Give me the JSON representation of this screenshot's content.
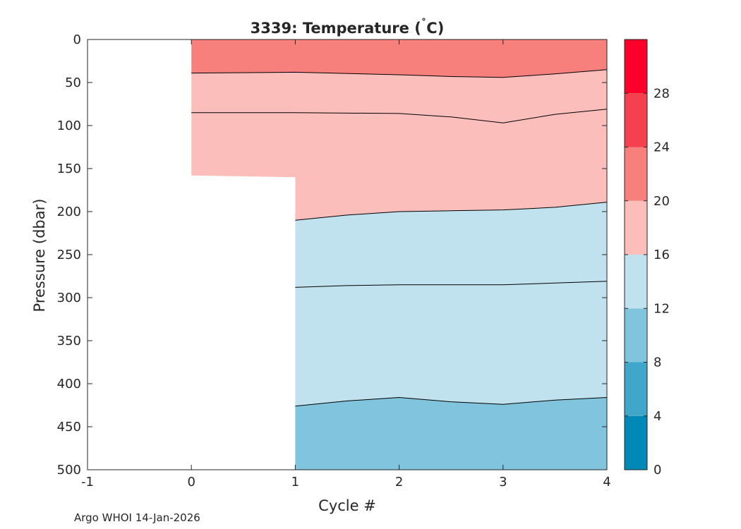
{
  "chart_data": {
    "type": "filled-contour",
    "title_prefix": "3339:  Temperature (",
    "title_degree": "˚",
    "title_suffix": "C)",
    "xlabel": "Cycle #",
    "ylabel": "Pressure (dbar)",
    "xlim": [
      -1,
      4
    ],
    "ylim": [
      0,
      500
    ],
    "y_reversed": true,
    "xticks": [
      -1,
      0,
      1,
      2,
      3,
      4
    ],
    "yticks": [
      0,
      50,
      100,
      150,
      200,
      250,
      300,
      350,
      400,
      450,
      500
    ],
    "colorbar": {
      "range": [
        0,
        32
      ],
      "ticks": [
        0,
        4,
        8,
        12,
        16,
        20,
        24,
        28
      ],
      "bands": [
        {
          "from": 0,
          "to": 4,
          "color": "#0089b5"
        },
        {
          "from": 4,
          "to": 8,
          "color": "#40a7cb"
        },
        {
          "from": 8,
          "to": 12,
          "color": "#80c4de"
        },
        {
          "from": 12,
          "to": 16,
          "color": "#c0e2ee"
        },
        {
          "from": 16,
          "to": 20,
          "color": "#fbbebb"
        },
        {
          "from": 20,
          "to": 24,
          "color": "#f8807c"
        },
        {
          "from": 24,
          "to": 28,
          "color": "#f5414f"
        },
        {
          "from": 28,
          "to": 32,
          "color": "#fa002a"
        }
      ]
    },
    "profiles": [
      {
        "cycle": 0,
        "max_pressure": 158
      },
      {
        "cycle": 1,
        "max_pressure": 500
      }
    ],
    "isotherms": [
      {
        "name": "isotherm-20",
        "level": 20,
        "cycles": [
          0,
          1,
          2,
          2.5,
          3,
          3.5,
          4
        ],
        "pressure": [
          39,
          38,
          41,
          43,
          44,
          40,
          35
        ]
      },
      {
        "name": "isotherm-18",
        "level": 18,
        "cycles": [
          0,
          1,
          2,
          2.5,
          3,
          3.5,
          4
        ],
        "pressure": [
          85,
          85,
          86,
          90,
          97,
          87,
          81
        ]
      },
      {
        "name": "isotherm-16",
        "level": 16,
        "cycles": [
          1,
          1.5,
          2,
          2.5,
          3,
          3.5,
          4
        ],
        "pressure": [
          210,
          204,
          200,
          199,
          198,
          195,
          189
        ]
      },
      {
        "name": "isotherm-14",
        "level": 14,
        "cycles": [
          1,
          1.5,
          2,
          2.5,
          3,
          3.5,
          4
        ],
        "pressure": [
          288,
          286,
          285,
          285,
          285,
          283,
          281
        ]
      },
      {
        "name": "isotherm-12",
        "level": 12,
        "cycles": [
          1,
          1.5,
          2,
          2.5,
          3,
          3.5,
          4
        ],
        "pressure": [
          426,
          420,
          416,
          421,
          424,
          419,
          416
        ]
      }
    ]
  },
  "footer": {
    "note": "Argo WHOI 14-Jan-2026"
  }
}
